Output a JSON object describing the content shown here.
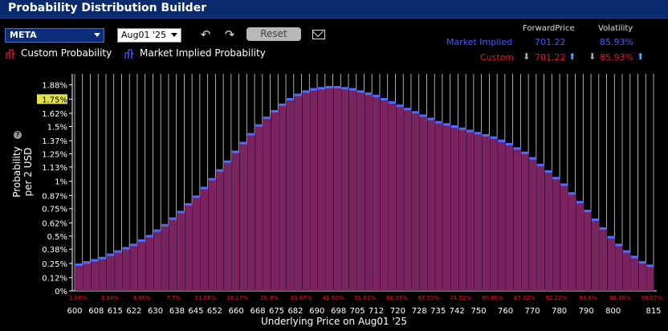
{
  "app": {
    "title": "Probability Distribution Builder"
  },
  "toolbar": {
    "symbol": "META",
    "expiry": "Aug01 '25",
    "reset_label": "Reset",
    "icons": [
      "undo-icon",
      "redo-icon",
      "mail-icon"
    ]
  },
  "legend": {
    "custom_label": "Custom Probability",
    "market_label": "Market Implied Probability",
    "custom_color": "#e0182e",
    "market_color": "#3d5cff"
  },
  "stats": {
    "forward_header": "ForwardPrice",
    "vol_header": "Volatility",
    "market_label": "Market Implied",
    "market_forward": "701.22",
    "market_vol": "85.93%",
    "custom_label": "Custom",
    "custom_forward": "701.22",
    "custom_vol": "85.93%"
  },
  "chart_data": {
    "type": "bar",
    "xlabel": "Underlying Price on Aug01 '25",
    "ylabel": "Probability per 2 USD",
    "highlight_y_label": "1.75%",
    "ylim": [
      0,
      1.98
    ],
    "y_ticks": [
      "0%",
      "0.12%",
      "0.25%",
      "0.38%",
      "0.5%",
      "0.62%",
      "0.75%",
      "0.87%",
      "1%",
      "1.13%",
      "1.25%",
      "1.37%",
      "1.5%",
      "1.62%",
      "1.75%",
      "1.88%"
    ],
    "x_ticks": [
      "600",
      "608",
      "615",
      "622",
      "630",
      "638",
      "645",
      "652",
      "660",
      "668",
      "675",
      "682",
      "690",
      "698",
      "705",
      "712",
      "720",
      "728",
      "735",
      "742",
      "750",
      "760",
      "770",
      "780",
      "790",
      "800",
      "815"
    ],
    "cumulative_labels": [
      "1.88%",
      "3.14%",
      "4.96%",
      "7.7%",
      "11.58%",
      "18.17%",
      "26.4%",
      "33.67%",
      "42.92%",
      "51.81%",
      "60.03%",
      "67.55%",
      "74.52%",
      "80.86%",
      "87.32%",
      "92.22%",
      "94.6%",
      "96.36%",
      "98.07%"
    ],
    "bar_color": "#7b2261",
    "bar_top_color": "#4f6cff",
    "values": [
      0.25,
      0.27,
      0.29,
      0.31,
      0.34,
      0.37,
      0.4,
      0.43,
      0.47,
      0.51,
      0.56,
      0.61,
      0.67,
      0.73,
      0.8,
      0.87,
      0.95,
      1.03,
      1.11,
      1.19,
      1.28,
      1.36,
      1.44,
      1.52,
      1.59,
      1.65,
      1.71,
      1.76,
      1.8,
      1.83,
      1.85,
      1.86,
      1.87,
      1.87,
      1.86,
      1.85,
      1.83,
      1.81,
      1.79,
      1.76,
      1.73,
      1.7,
      1.67,
      1.64,
      1.61,
      1.58,
      1.55,
      1.53,
      1.51,
      1.49,
      1.47,
      1.45,
      1.43,
      1.41,
      1.38,
      1.35,
      1.31,
      1.27,
      1.22,
      1.16,
      1.1,
      1.04,
      0.98,
      0.9,
      0.82,
      0.74,
      0.66,
      0.58,
      0.5,
      0.43,
      0.37,
      0.32,
      0.27,
      0.24
    ]
  }
}
